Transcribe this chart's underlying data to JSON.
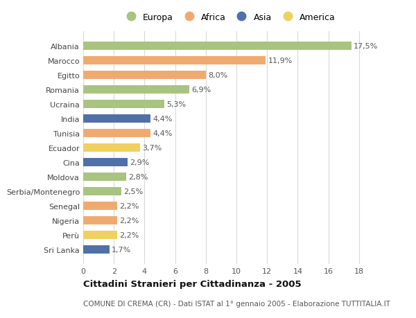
{
  "countries": [
    "Albania",
    "Marocco",
    "Egitto",
    "Romania",
    "Ucraina",
    "India",
    "Tunisia",
    "Ecuador",
    "Cina",
    "Moldova",
    "Serbia/Montenegro",
    "Senegal",
    "Nigeria",
    "Perù",
    "Sri Lanka"
  ],
  "values": [
    17.5,
    11.9,
    8.0,
    6.9,
    5.3,
    4.4,
    4.4,
    3.7,
    2.9,
    2.8,
    2.5,
    2.2,
    2.2,
    2.2,
    1.7
  ],
  "labels": [
    "17,5%",
    "11,9%",
    "8,0%",
    "6,9%",
    "5,3%",
    "4,4%",
    "4,4%",
    "3,7%",
    "2,9%",
    "2,8%",
    "2,5%",
    "2,2%",
    "2,2%",
    "2,2%",
    "1,7%"
  ],
  "continents": [
    "Europa",
    "Africa",
    "Africa",
    "Europa",
    "Europa",
    "Asia",
    "Africa",
    "America",
    "Asia",
    "Europa",
    "Europa",
    "Africa",
    "Africa",
    "America",
    "Asia"
  ],
  "colors": {
    "Europa": "#a8c480",
    "Africa": "#f0aa70",
    "Asia": "#5070a8",
    "America": "#f0d060"
  },
  "xlim": [
    0,
    19
  ],
  "xticks": [
    0,
    2,
    4,
    6,
    8,
    10,
    12,
    14,
    16,
    18
  ],
  "title": "Cittadini Stranieri per Cittadinanza - 2005",
  "subtitle": "COMUNE DI CREMA (CR) - Dati ISTAT al 1° gennaio 2005 - Elaborazione TUTTITALIA.IT",
  "background_color": "#ffffff",
  "grid_color": "#d8d8d8",
  "bar_height": 0.55,
  "label_fontsize": 8.0,
  "tick_fontsize": 8.0,
  "title_fontsize": 9.5,
  "subtitle_fontsize": 7.5,
  "legend_order": [
    "Europa",
    "Africa",
    "Asia",
    "America"
  ]
}
